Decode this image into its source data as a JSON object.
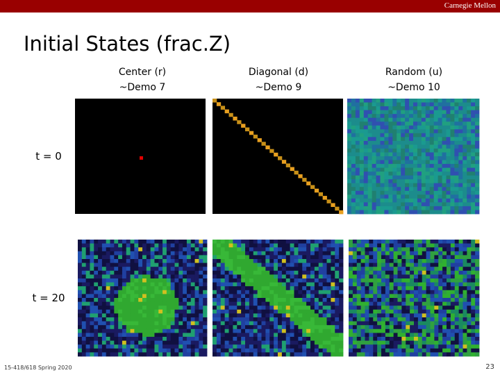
{
  "header": {
    "brand": "Carnegie Mellon",
    "title": "Initial States (frac.Z)"
  },
  "columns": [
    {
      "label": "Center (r)",
      "demo": "~Demo 7"
    },
    {
      "label": "Diagonal (d)",
      "demo": "~Demo 9"
    },
    {
      "label": "Random (u)",
      "demo": "~Demo 10"
    }
  ],
  "rows": [
    "t = 0",
    "t = 20"
  ],
  "footer": {
    "course": "15-418/618 Spring 2020",
    "page": "23"
  }
}
